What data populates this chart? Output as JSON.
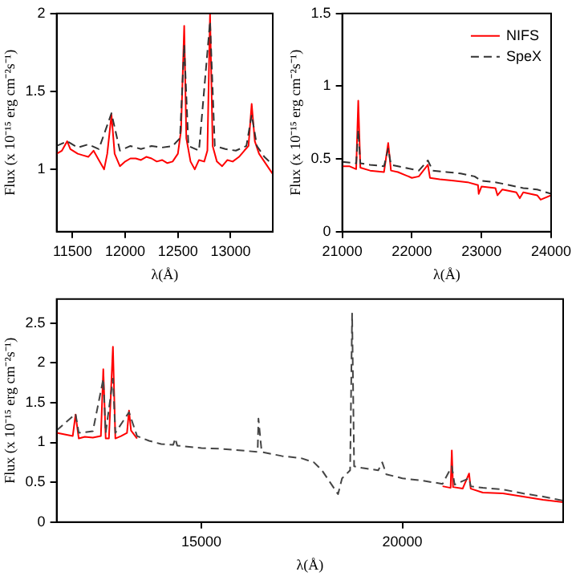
{
  "chart_data": [
    {
      "type": "line",
      "xlabel": "λ(Å)",
      "ylabel": "Flux (x 10⁻¹⁵ erg cm⁻²s⁻¹)",
      "xlim": [
        11350,
        13400
      ],
      "xticks": [
        11500,
        12000,
        12500,
        13000
      ],
      "ylim": [
        0.6,
        2
      ],
      "yticks": [
        1,
        1.5,
        2
      ],
      "marker": "none",
      "legend": false,
      "series": [
        {
          "color": "#ff0000",
          "line_style": "solid",
          "x": [
            11350,
            11400,
            11450,
            11480,
            11550,
            11600,
            11650,
            11700,
            11750,
            11800,
            11830,
            11870,
            11900,
            11950,
            12000,
            12050,
            12100,
            12150,
            12200,
            12250,
            12300,
            12350,
            12400,
            12450,
            12500,
            12530,
            12560,
            12580,
            12620,
            12660,
            12700,
            12750,
            12780,
            12805,
            12830,
            12870,
            12920,
            12970,
            13020,
            13080,
            13130,
            13170,
            13200,
            13230,
            13270,
            13320,
            13370,
            13400
          ],
          "values": [
            1.1,
            1.12,
            1.18,
            1.13,
            1.1,
            1.09,
            1.08,
            1.12,
            1.06,
            1.0,
            1.1,
            1.35,
            1.1,
            1.02,
            1.05,
            1.07,
            1.07,
            1.06,
            1.08,
            1.07,
            1.05,
            1.06,
            1.04,
            1.05,
            1.1,
            1.25,
            1.92,
            1.2,
            1.05,
            1.0,
            1.06,
            1.05,
            1.12,
            2.0,
            1.15,
            1.05,
            1.02,
            1.06,
            1.05,
            1.08,
            1.12,
            1.15,
            1.42,
            1.18,
            1.1,
            1.05,
            1.0,
            0.97
          ]
        },
        {
          "color": "#333333",
          "line_style": "dashed",
          "x": [
            11350,
            11450,
            11550,
            11650,
            11750,
            11870,
            11950,
            12050,
            12150,
            12250,
            12350,
            12450,
            12520,
            12560,
            12600,
            12700,
            12805,
            12850,
            12950,
            13050,
            13150,
            13200,
            13250,
            13320,
            13400
          ],
          "values": [
            1.15,
            1.18,
            1.14,
            1.16,
            1.13,
            1.36,
            1.12,
            1.15,
            1.13,
            1.15,
            1.14,
            1.15,
            1.2,
            1.8,
            1.15,
            1.12,
            1.95,
            1.15,
            1.13,
            1.12,
            1.15,
            1.35,
            1.15,
            1.08,
            1.03
          ]
        }
      ]
    },
    {
      "type": "line",
      "xlabel": "λ(Å)",
      "ylabel": "Flux (x 10⁻¹⁵ erg cm⁻²s⁻¹)",
      "xlim": [
        21000,
        24000
      ],
      "xticks": [
        21000,
        22000,
        23000,
        24000
      ],
      "ylim": [
        0,
        1.5
      ],
      "yticks": [
        0,
        0.5,
        1,
        1.5
      ],
      "marker": "none",
      "legend": "top right",
      "series": [
        {
          "name": "NIFS",
          "color": "#ff0000",
          "line_style": "solid",
          "x": [
            21000,
            21100,
            21200,
            21230,
            21260,
            21400,
            21600,
            21660,
            21700,
            21800,
            21900,
            22000,
            22100,
            22230,
            22260,
            22400,
            22600,
            22800,
            22950,
            22960,
            23000,
            23200,
            23230,
            23300,
            23500,
            23550,
            23600,
            23800,
            23850,
            24000
          ],
          "values": [
            0.45,
            0.45,
            0.43,
            0.9,
            0.44,
            0.42,
            0.41,
            0.61,
            0.42,
            0.41,
            0.39,
            0.37,
            0.38,
            0.46,
            0.37,
            0.36,
            0.35,
            0.34,
            0.32,
            0.26,
            0.31,
            0.3,
            0.25,
            0.29,
            0.27,
            0.23,
            0.27,
            0.25,
            0.22,
            0.25
          ]
        },
        {
          "name": "SpeX",
          "color": "#333333",
          "line_style": "dashed",
          "x": [
            21000,
            21200,
            21230,
            21260,
            21400,
            21600,
            21660,
            21700,
            21900,
            22100,
            22230,
            22300,
            22500,
            22700,
            22900,
            23000,
            23200,
            23400,
            23600,
            23800,
            24000
          ],
          "values": [
            0.48,
            0.47,
            0.7,
            0.47,
            0.46,
            0.45,
            0.57,
            0.46,
            0.44,
            0.42,
            0.49,
            0.42,
            0.41,
            0.4,
            0.38,
            0.35,
            0.34,
            0.32,
            0.3,
            0.29,
            0.26
          ]
        }
      ]
    },
    {
      "type": "line",
      "xlabel": "λ(Å)",
      "ylabel": "Flux (x 10⁻¹⁵ erg cm⁻²s⁻¹)",
      "xlim": [
        11400,
        24000
      ],
      "xticks": [
        15000,
        20000
      ],
      "ylim": [
        0,
        2.8
      ],
      "yticks": [
        0,
        0.5,
        1,
        1.5,
        2,
        2.5
      ],
      "marker": "none",
      "legend": false,
      "series": [
        {
          "color": "#ff0000",
          "line_style": "solid",
          "x": [
            11400,
            11600,
            11800,
            11870,
            11950,
            12100,
            12300,
            12500,
            12560,
            12620,
            12700,
            12800,
            12860,
            13000,
            13150,
            13200,
            13250,
            13400,
            17000,
            21000,
            21200,
            21230,
            21260,
            21500,
            21660,
            21700,
            22000,
            22500,
            23000,
            23500,
            24000
          ],
          "values": [
            1.12,
            1.1,
            1.08,
            1.35,
            1.05,
            1.07,
            1.06,
            1.08,
            1.92,
            1.05,
            1.05,
            2.2,
            1.05,
            1.08,
            1.12,
            1.4,
            1.15,
            1.05,
            null,
            0.45,
            0.43,
            0.9,
            0.44,
            0.42,
            0.61,
            0.42,
            0.37,
            0.36,
            0.32,
            0.28,
            0.25
          ]
        },
        {
          "color": "#444444",
          "line_style": "dashed",
          "x": [
            11400,
            11870,
            11950,
            12300,
            12560,
            12620,
            12800,
            12860,
            13200,
            13400,
            13700,
            14000,
            14300,
            14350,
            14400,
            15000,
            15500,
            16000,
            16400,
            16420,
            16500,
            17000,
            17500,
            17800,
            18000,
            18200,
            18400,
            18500,
            18700,
            18750,
            18800,
            19000,
            19400,
            19500,
            19600,
            20000,
            20500,
            21000,
            21230,
            21300,
            21660,
            21700,
            22000,
            22500,
            23000,
            23500,
            24000
          ],
          "values": [
            1.15,
            1.36,
            1.12,
            1.14,
            1.8,
            1.12,
            1.8,
            1.12,
            1.38,
            1.08,
            1.02,
            0.98,
            0.97,
            1.05,
            0.96,
            0.93,
            0.92,
            0.9,
            0.88,
            1.3,
            0.88,
            0.83,
            0.8,
            0.75,
            0.65,
            0.5,
            0.35,
            0.55,
            0.65,
            2.62,
            0.7,
            0.68,
            0.65,
            0.75,
            0.6,
            0.55,
            0.52,
            0.48,
            0.7,
            0.47,
            0.55,
            0.45,
            0.43,
            0.41,
            0.36,
            0.32,
            0.27
          ]
        }
      ]
    }
  ]
}
